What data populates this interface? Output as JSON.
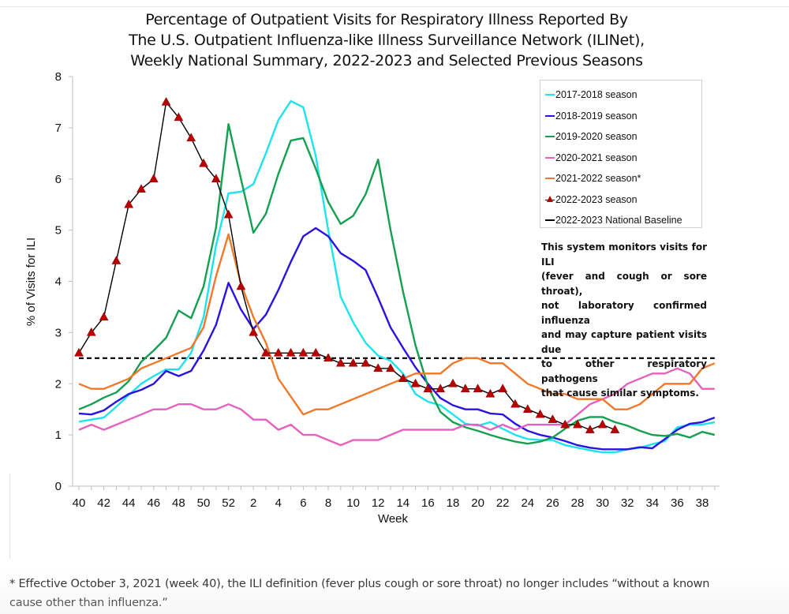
{
  "chart_data": {
    "type": "line",
    "title": [
      "Percentage of Outpatient Visits for Respiratory Illness Reported By",
      "The U.S. Outpatient Influenza-like Illness Surveillance Network (ILINet),",
      "Weekly National Summary, 2022-2023 and Selected Previous Seasons"
    ],
    "xlabel": "Week",
    "ylabel": "% of Visits for ILI",
    "ylim": [
      0,
      8
    ],
    "yticks": [
      0,
      1,
      2,
      3,
      4,
      5,
      6,
      7,
      8
    ],
    "x": [
      40,
      41,
      42,
      43,
      44,
      45,
      46,
      47,
      48,
      49,
      50,
      51,
      52,
      1,
      2,
      3,
      4,
      5,
      6,
      7,
      8,
      9,
      10,
      11,
      12,
      13,
      14,
      15,
      16,
      17,
      18,
      19,
      20,
      21,
      22,
      23,
      24,
      25,
      26,
      27,
      28,
      29,
      30,
      31,
      32,
      33,
      34,
      35,
      36,
      37,
      38,
      39
    ],
    "xtick_labels": [
      "40",
      "42",
      "44",
      "46",
      "48",
      "50",
      "52",
      "2",
      "4",
      "6",
      "8",
      "10",
      "12",
      "14",
      "16",
      "18",
      "20",
      "22",
      "24",
      "26",
      "28",
      "30",
      "32",
      "34",
      "36",
      "38"
    ],
    "grid": false,
    "legend_position": "top-right",
    "series": [
      {
        "name": "2017-2018 season",
        "color": "#1ee3ee",
        "marker": "none",
        "values": [
          1.26,
          1.3,
          1.34,
          1.55,
          1.78,
          2.0,
          2.15,
          2.28,
          2.28,
          2.6,
          3.3,
          4.7,
          5.72,
          5.75,
          5.9,
          6.5,
          7.15,
          7.52,
          7.4,
          6.45,
          5.0,
          3.7,
          3.2,
          2.8,
          2.55,
          2.45,
          2.2,
          1.8,
          1.65,
          1.58,
          1.4,
          1.22,
          1.18,
          1.25,
          1.12,
          1.0,
          0.92,
          0.9,
          0.9,
          0.8,
          0.75,
          0.7,
          0.66,
          0.66,
          0.72,
          0.75,
          0.82,
          0.88,
          1.15,
          1.2,
          1.2,
          1.25
        ]
      },
      {
        "name": "2018-2019 season",
        "color": "#2a12e0",
        "marker": "none",
        "values": [
          1.42,
          1.4,
          1.48,
          1.65,
          1.8,
          1.88,
          2.0,
          2.25,
          2.15,
          2.25,
          2.65,
          3.15,
          3.97,
          3.45,
          3.07,
          3.35,
          3.83,
          4.38,
          4.88,
          5.04,
          4.88,
          4.55,
          4.4,
          4.22,
          3.68,
          3.1,
          2.7,
          2.32,
          2.0,
          1.72,
          1.58,
          1.5,
          1.5,
          1.42,
          1.4,
          1.22,
          1.08,
          1.0,
          0.95,
          0.88,
          0.8,
          0.75,
          0.72,
          0.72,
          0.72,
          0.76,
          0.74,
          0.92,
          1.1,
          1.22,
          1.25,
          1.34
        ]
      },
      {
        "name": "2019-2020 season",
        "color": "#14a050",
        "marker": "none",
        "values": [
          1.5,
          1.6,
          1.73,
          1.83,
          2.05,
          2.43,
          2.65,
          2.9,
          3.43,
          3.28,
          3.9,
          5.05,
          7.07,
          6.0,
          4.95,
          5.32,
          6.1,
          6.75,
          6.8,
          6.2,
          5.55,
          5.12,
          5.28,
          5.7,
          6.38,
          5.0,
          3.8,
          2.75,
          1.95,
          1.45,
          1.25,
          1.15,
          1.08,
          1.0,
          0.93,
          0.87,
          0.83,
          0.87,
          0.95,
          1.12,
          1.28,
          1.35,
          1.35,
          1.25,
          1.18,
          1.08,
          1.0,
          0.98,
          1.02,
          0.95,
          1.06,
          1.0
        ]
      },
      {
        "name": "2020-2021 season",
        "color": "#e660c0",
        "marker": "none",
        "values": [
          1.1,
          1.2,
          1.1,
          1.2,
          1.3,
          1.4,
          1.5,
          1.5,
          1.6,
          1.6,
          1.5,
          1.5,
          1.6,
          1.5,
          1.3,
          1.3,
          1.1,
          1.2,
          1.0,
          1.0,
          0.9,
          0.8,
          0.9,
          0.9,
          0.9,
          1.0,
          1.1,
          1.1,
          1.1,
          1.1,
          1.1,
          1.2,
          1.2,
          1.1,
          1.2,
          1.1,
          1.2,
          1.2,
          1.2,
          1.2,
          1.4,
          1.6,
          1.7,
          1.8,
          2.0,
          2.1,
          2.2,
          2.2,
          2.3,
          2.2,
          1.9,
          1.9
        ]
      },
      {
        "name": "2021-2022 season*",
        "color": "#f07828",
        "marker": "none",
        "values": [
          2.0,
          1.9,
          1.9,
          2.0,
          2.1,
          2.3,
          2.4,
          2.5,
          2.6,
          2.7,
          3.1,
          4.1,
          4.92,
          3.95,
          3.3,
          2.8,
          2.1,
          1.75,
          1.4,
          1.5,
          1.5,
          1.6,
          1.7,
          1.8,
          1.9,
          2.0,
          2.1,
          2.2,
          2.2,
          2.2,
          2.4,
          2.5,
          2.5,
          2.4,
          2.4,
          2.2,
          2.0,
          1.9,
          1.8,
          1.8,
          1.7,
          1.7,
          1.7,
          1.5,
          1.5,
          1.6,
          1.8,
          2.0,
          2.0,
          2.0,
          2.3,
          2.4
        ]
      },
      {
        "name": "2022-2023 season",
        "color": "#000000",
        "marker": "triangle",
        "marker_color": "#b80000",
        "values": [
          2.6,
          3.0,
          3.3,
          4.4,
          5.5,
          5.8,
          6.0,
          7.5,
          7.2,
          6.8,
          6.3,
          6.0,
          5.3,
          3.9,
          3.0,
          2.6,
          2.6,
          2.6,
          2.6,
          2.6,
          2.5,
          2.4,
          2.4,
          2.4,
          2.3,
          2.3,
          2.1,
          2.0,
          1.9,
          1.9,
          2.0,
          1.9,
          1.9,
          1.8,
          1.9,
          1.6,
          1.5,
          1.4,
          1.3,
          1.2,
          1.2,
          1.1,
          1.2,
          1.1,
          null,
          null,
          null,
          null,
          null,
          null,
          null,
          null
        ]
      },
      {
        "name": "2022-2023 National Baseline",
        "color": "#000000",
        "marker": "none",
        "dashed": true,
        "value": 2.5
      }
    ],
    "annotation": [
      "This system monitors visits for ILI",
      "(fever and cough or sore throat),",
      "not laboratory confirmed influenza",
      "and may capture patient visits due",
      "to other respiratory pathogens",
      "that cause similar symptoms."
    ]
  },
  "legend": {
    "items": [
      {
        "label": "2017-2018 season",
        "color": "#1ee3ee",
        "kind": "line"
      },
      {
        "label": "2018-2019 season",
        "color": "#2a12e0",
        "kind": "line"
      },
      {
        "label": "2019-2020 season",
        "color": "#14a050",
        "kind": "line"
      },
      {
        "label": "2020-2021 season",
        "color": "#e660c0",
        "kind": "line"
      },
      {
        "label": "2021-2022 season*",
        "color": "#f07828",
        "kind": "line"
      },
      {
        "label": "2022-2023 season",
        "color": "#b80000",
        "kind": "triangle"
      },
      {
        "label": "2022-2023 National Baseline",
        "color": "#000000",
        "kind": "dash"
      }
    ]
  },
  "footnote": {
    "line1": "* Effective October 3, 2021 (week 40), the ILI definition (fever plus cough or sore throat) no longer includes “without a known",
    "line2": "cause other than influenza.”"
  }
}
